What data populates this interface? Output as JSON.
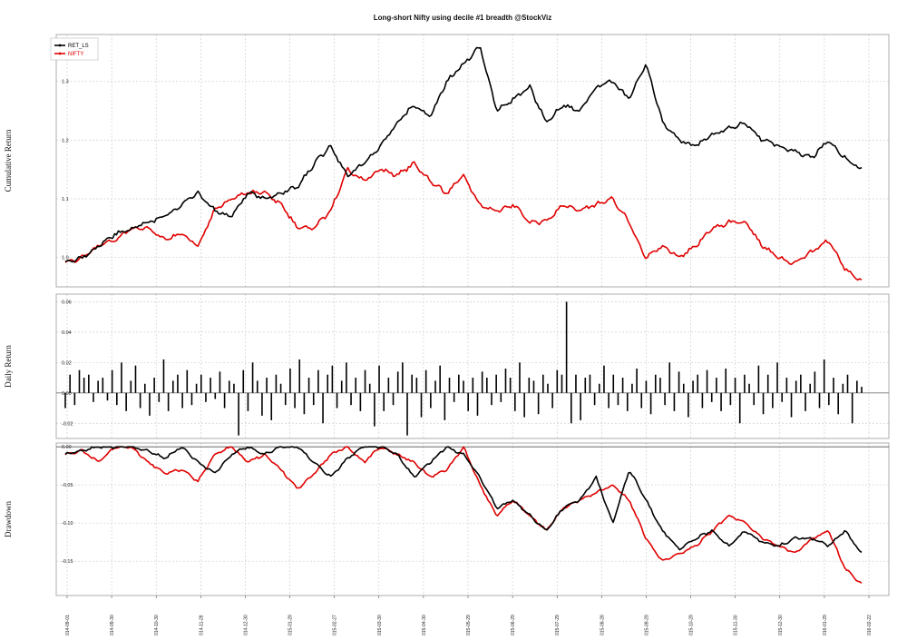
{
  "chart_data": {
    "title": "Long-short Nifty using decile #1 breadth @StockViz",
    "type": "line",
    "x_labels": [
      "2014-09-01",
      "2014-09-30",
      "2014-10-30",
      "2014-11-28",
      "2014-12-30",
      "2015-01-29",
      "2015-02-27",
      "2015-03-30",
      "2015-04-30",
      "2015-05-29",
      "2015-06-29",
      "2015-07-29",
      "2015-08-28",
      "2015-09-29",
      "2015-10-29",
      "2015-11-30",
      "2015-12-30",
      "2016-01-29",
      "2016-02-22"
    ],
    "legend": {
      "position": "top-left",
      "entries": [
        {
          "name": "RET_LS",
          "color": "#000000"
        },
        {
          "name": "NIFTY",
          "color": "#e00000"
        }
      ]
    },
    "panels": [
      {
        "id": "cumulative",
        "ylabel": "Cumulative Return",
        "ylim": [
          0.95,
          1.38
        ],
        "yticks": [
          "1.0",
          "1.1",
          "1.2",
          "1.3"
        ],
        "ytick_values": [
          1.0,
          1.1,
          1.2,
          1.3
        ],
        "series": [
          {
            "name": "RET_LS",
            "color": "#000000",
            "values": [
              0.99,
              1.0,
              1.02,
              1.04,
              1.05,
              1.06,
              1.07,
              1.09,
              1.11,
              1.08,
              1.07,
              1.11,
              1.1,
              1.11,
              1.12,
              1.16,
              1.19,
              1.14,
              1.16,
              1.19,
              1.23,
              1.26,
              1.24,
              1.3,
              1.33,
              1.36,
              1.25,
              1.27,
              1.29,
              1.23,
              1.26,
              1.25,
              1.29,
              1.3,
              1.27,
              1.33,
              1.23,
              1.2,
              1.19,
              1.21,
              1.22,
              1.23,
              1.2,
              1.19,
              1.18,
              1.17,
              1.2,
              1.17,
              1.15
            ]
          },
          {
            "name": "NIFTY",
            "color": "#e00000",
            "values": [
              0.99,
              1.0,
              1.02,
              1.03,
              1.05,
              1.05,
              1.03,
              1.04,
              1.02,
              1.08,
              1.1,
              1.11,
              1.11,
              1.09,
              1.05,
              1.05,
              1.08,
              1.15,
              1.13,
              1.15,
              1.14,
              1.16,
              1.13,
              1.11,
              1.14,
              1.09,
              1.08,
              1.09,
              1.06,
              1.06,
              1.09,
              1.08,
              1.09,
              1.1,
              1.06,
              1.0,
              1.02,
              1.0,
              1.02,
              1.05,
              1.06,
              1.06,
              1.02,
              1.0,
              0.99,
              1.01,
              1.03,
              0.98,
              0.96
            ]
          }
        ]
      },
      {
        "id": "daily",
        "ylabel": "Daily Return",
        "ylim": [
          -0.03,
          0.065
        ],
        "yticks": [
          "-0.02",
          "0.00",
          "0.02",
          "0.04",
          "0.06"
        ],
        "ytick_values": [
          -0.02,
          0.0,
          0.02,
          0.04,
          0.06
        ],
        "bars": [
          -0.01,
          0.012,
          -0.008,
          0.015,
          0.01,
          0.012,
          -0.006,
          0.008,
          0.01,
          -0.005,
          0.015,
          -0.008,
          0.02,
          -0.012,
          0.008,
          0.018,
          -0.01,
          0.006,
          -0.015,
          0.01,
          -0.006,
          0.022,
          -0.012,
          0.008,
          0.012,
          -0.01,
          0.015,
          -0.008,
          0.006,
          0.012,
          -0.006,
          0.01,
          -0.004,
          0.014,
          -0.01,
          0.008,
          0.006,
          -0.028,
          0.015,
          -0.012,
          0.02,
          0.008,
          -0.015,
          0.01,
          -0.018,
          0.012,
          0.006,
          -0.008,
          0.016,
          -0.01,
          0.022,
          -0.014,
          0.01,
          -0.008,
          0.015,
          -0.02,
          0.012,
          0.018,
          -0.01,
          0.008,
          0.02,
          -0.008,
          0.01,
          -0.012,
          0.015,
          0.006,
          -0.022,
          0.018,
          -0.012,
          0.01,
          -0.008,
          0.014,
          0.02,
          -0.028,
          0.012,
          0.01,
          -0.016,
          0.015,
          -0.01,
          0.008,
          0.018,
          -0.018,
          0.01,
          -0.006,
          0.012,
          0.008,
          -0.012,
          0.01,
          -0.015,
          0.014,
          0.01,
          -0.008,
          0.012,
          -0.006,
          0.016,
          0.01,
          -0.012,
          0.02,
          -0.016,
          0.01,
          0.008,
          -0.014,
          0.012,
          0.006,
          -0.01,
          0.015,
          0.012,
          0.06,
          -0.02,
          0.012,
          -0.018,
          0.01,
          0.012,
          -0.008,
          0.006,
          0.018,
          -0.01,
          0.012,
          -0.008,
          0.01,
          -0.012,
          0.006,
          0.016,
          -0.01,
          0.008,
          -0.014,
          0.012,
          0.01,
          -0.008,
          0.02,
          -0.012,
          0.014,
          0.006,
          -0.016,
          0.008,
          0.012,
          -0.01,
          0.015,
          -0.006,
          0.01,
          -0.012,
          0.016,
          -0.008,
          0.01,
          -0.02,
          0.012,
          0.006,
          -0.008,
          0.018,
          -0.014,
          0.012,
          -0.01,
          0.02,
          -0.006,
          0.01,
          -0.016,
          0.008,
          0.012,
          -0.012,
          0.006,
          0.014,
          -0.01,
          0.022,
          -0.008,
          0.01,
          -0.014,
          0.006,
          0.012,
          -0.02,
          0.008,
          0.004
        ]
      },
      {
        "id": "drawdown",
        "ylabel": "Drawdown",
        "ylim": [
          -0.195,
          0.005
        ],
        "yticks": [
          "-0.15",
          "-0.10",
          "-0.05",
          "0.00"
        ],
        "ytick_values": [
          -0.15,
          -0.1,
          -0.05,
          0.0
        ],
        "series": [
          {
            "name": "RET_LS",
            "color": "#000000",
            "values": [
              -0.01,
              -0.005,
              0.0,
              0.0,
              0.0,
              -0.005,
              -0.015,
              0.0,
              -0.02,
              -0.035,
              -0.01,
              0.0,
              -0.01,
              0.0,
              0.0,
              -0.02,
              -0.04,
              -0.015,
              0.0,
              0.0,
              -0.01,
              -0.04,
              -0.02,
              0.0,
              -0.01,
              -0.04,
              -0.08,
              -0.07,
              -0.09,
              -0.11,
              -0.08,
              -0.07,
              -0.04,
              -0.1,
              -0.03,
              -0.07,
              -0.11,
              -0.135,
              -0.12,
              -0.11,
              -0.13,
              -0.11,
              -0.125,
              -0.13,
              -0.12,
              -0.12,
              -0.13,
              -0.11,
              -0.14
            ]
          },
          {
            "name": "NIFTY",
            "color": "#e00000",
            "values": [
              -0.01,
              -0.005,
              -0.02,
              0.0,
              0.0,
              -0.02,
              -0.035,
              -0.03,
              -0.045,
              -0.01,
              0.0,
              -0.02,
              -0.01,
              -0.03,
              -0.055,
              -0.035,
              -0.01,
              0.0,
              -0.02,
              0.0,
              -0.01,
              -0.02,
              -0.04,
              -0.03,
              0.0,
              -0.05,
              -0.09,
              -0.07,
              -0.09,
              -0.11,
              -0.08,
              -0.07,
              -0.06,
              -0.05,
              -0.07,
              -0.12,
              -0.15,
              -0.14,
              -0.13,
              -0.11,
              -0.09,
              -0.1,
              -0.12,
              -0.13,
              -0.14,
              -0.12,
              -0.11,
              -0.16,
              -0.18
            ]
          }
        ]
      }
    ]
  }
}
